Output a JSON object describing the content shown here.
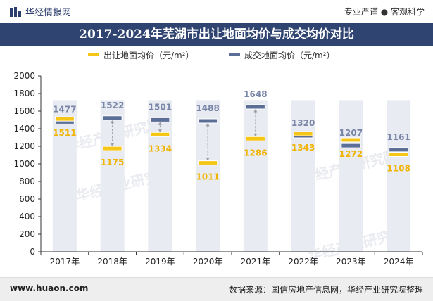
{
  "header": {
    "brand": "华经情报网",
    "brand_icon": "bar-chart-logo-icon",
    "slogan": "专业严谨 ● 客观科学"
  },
  "title": "2017-2024年芜湖市出让地面均价与成交均价对比",
  "footer": {
    "site": "www.huaon.com",
    "source": "数据来源：国信房地产信息网，华经产业研究院整理"
  },
  "watermark": "华经产业研究院",
  "colors": {
    "sale": "#f5c518",
    "deal": "#5b6e96",
    "column": "#e8ebf1",
    "title_bg": "#2f4470",
    "sale_label": "#f0b400",
    "deal_label": "#7a86a8"
  },
  "chart_data": {
    "type": "line",
    "categories": [
      "2017年",
      "2018年",
      "2019年",
      "2020年",
      "2021年",
      "2022年",
      "2023年",
      "2024年"
    ],
    "series": [
      {
        "name": "出让地面均价（元/m²）",
        "values": [
          1511,
          1175,
          1334,
          1011,
          1286,
          1343,
          1272,
          1108
        ]
      },
      {
        "name": "成交地面均价（元/m²）",
        "values": [
          1477,
          1522,
          1501,
          1488,
          1648,
          1320,
          1207,
          1161
        ]
      }
    ],
    "y_ticks": [
      "0",
      "200",
      "400",
      "600",
      "800",
      "1000",
      "1200",
      "1400",
      "1600",
      "1800",
      "2000"
    ],
    "ylim": [
      0,
      2000
    ],
    "legend_position": "top-center"
  }
}
